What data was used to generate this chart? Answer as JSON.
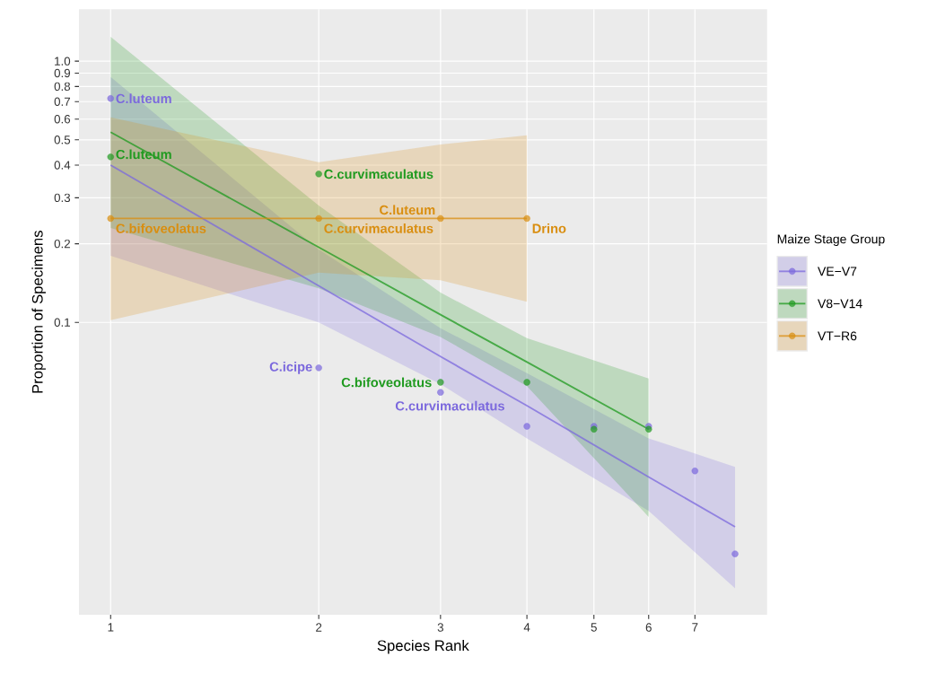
{
  "chart_data": {
    "type": "scatter",
    "xlabel": "Species Rank",
    "ylabel": "Proportion of Specimens",
    "legend_title": "Maize Stage Group",
    "legend": "right",
    "log": "xy",
    "grid": true,
    "marker": "circle",
    "xlim": [
      0.9,
      8.9
    ],
    "ylim": [
      0.0076,
      1.58
    ],
    "xticks": [
      1,
      2,
      3,
      4,
      5,
      6,
      7
    ],
    "yticks": [
      0.1,
      0.2,
      0.3,
      0.4,
      0.5,
      0.6,
      0.7,
      0.8,
      0.9,
      {
        "value": 1,
        "label": "1.0"
      }
    ],
    "series": [
      {
        "name": "VE−V7",
        "color": "#7b68dd",
        "x": [
          1,
          2,
          3,
          4,
          5,
          6,
          7,
          8
        ],
        "values": [
          0.72,
          0.067,
          0.054,
          0.04,
          0.04,
          0.04,
          0.027,
          0.013
        ],
        "value_labels": [
          "C.luteum",
          "C.icipe",
          "C.curvimaculatus",
          null,
          null,
          null,
          null,
          null
        ]
      },
      {
        "name": "V8−V14",
        "color": "#1f9a1f",
        "x": [
          1,
          2,
          3,
          4,
          5,
          6
        ],
        "values": [
          0.43,
          0.37,
          0.059,
          0.059,
          0.039,
          0.039
        ],
        "value_labels": [
          "C.luteum",
          "C.curvimaculatus",
          "C.bifoveolatus",
          null,
          null,
          null
        ]
      },
      {
        "name": "VT−R6",
        "color": "#d98e10",
        "x": [
          1,
          2,
          3,
          4
        ],
        "values": [
          0.25,
          0.25,
          0.25,
          0.25
        ],
        "value_labels": [
          "C.bifoveolatus",
          "C.curvimaculatus",
          "C.luteum",
          "Drino"
        ]
      },
      {
        "type": "line",
        "marker": "none",
        "color": "#7b68dd",
        "line_style": "solid",
        "x": [
          1,
          2,
          3,
          4,
          6,
          8
        ],
        "values": [
          0.4,
          0.138,
          0.074,
          0.048,
          0.0256,
          0.0165
        ],
        "lower": [
          0.18,
          0.1,
          0.058,
          0.036,
          0.019,
          0.0096
        ],
        "upper": [
          0.87,
          0.19,
          0.095,
          0.064,
          0.036,
          0.028
        ]
      },
      {
        "type": "line",
        "marker": "none",
        "color": "#1f9a1f",
        "line_style": "solid",
        "x": [
          1,
          2,
          3,
          4,
          6
        ],
        "values": [
          0.535,
          0.194,
          0.107,
          0.0705,
          0.039
        ],
        "lower": [
          0.23,
          0.135,
          0.088,
          0.057,
          0.018
        ],
        "upper": [
          1.24,
          0.28,
          0.13,
          0.087,
          0.061
        ]
      },
      {
        "type": "line",
        "marker": "none",
        "color": "#d98e10",
        "line_style": "solid",
        "x": [
          1,
          2,
          3,
          4
        ],
        "values": [
          0.25,
          0.25,
          0.25,
          0.25
        ],
        "lower": [
          0.102,
          0.155,
          0.145,
          0.12
        ],
        "upper": [
          0.61,
          0.41,
          0.48,
          0.52
        ]
      }
    ]
  }
}
